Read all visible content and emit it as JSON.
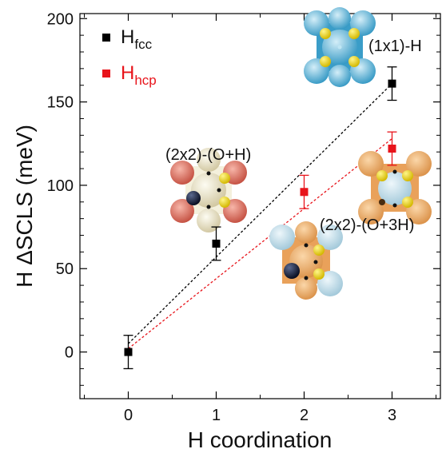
{
  "chart_data": {
    "type": "scatter",
    "xlabel": "H coordination",
    "ylabel": "H ΔSCLS (meV)",
    "xlim": [
      -0.55,
      3.55
    ],
    "ylim": [
      -28,
      203
    ],
    "x_ticks": [
      0,
      1,
      2,
      3
    ],
    "y_ticks": [
      0,
      50,
      100,
      150,
      200
    ],
    "grid": false,
    "legend_position": "top-left",
    "series": [
      {
        "name_main": "H",
        "name_sub": "fcc",
        "color": "#000000",
        "marker": "square",
        "points": [
          {
            "x": 0,
            "y": 0,
            "err": 10
          },
          {
            "x": 1,
            "y": 65,
            "err": 10
          },
          {
            "x": 3,
            "y": 161,
            "err": 10
          }
        ],
        "fit": {
          "x0": 0,
          "y0": 5,
          "x1": 3,
          "y1": 161
        }
      },
      {
        "name_main": "H",
        "name_sub": "hcp",
        "color": "#e8141b",
        "marker": "square",
        "points": [
          {
            "x": 2,
            "y": 96,
            "err": 10
          },
          {
            "x": 3,
            "y": 122,
            "err": 10
          }
        ],
        "fit": {
          "x0": 0,
          "y0": 2,
          "x1": 3,
          "y1": 128
        }
      }
    ],
    "annotations": [
      {
        "text": "(2x2)-(O+H)",
        "icon": "structure-2x2-o-h"
      },
      {
        "text": "(1x1)-H",
        "icon": "structure-1x1-h"
      },
      {
        "text": "(2x2)-(O+3H)",
        "icon": "structure-2x2-o-3h"
      }
    ]
  }
}
